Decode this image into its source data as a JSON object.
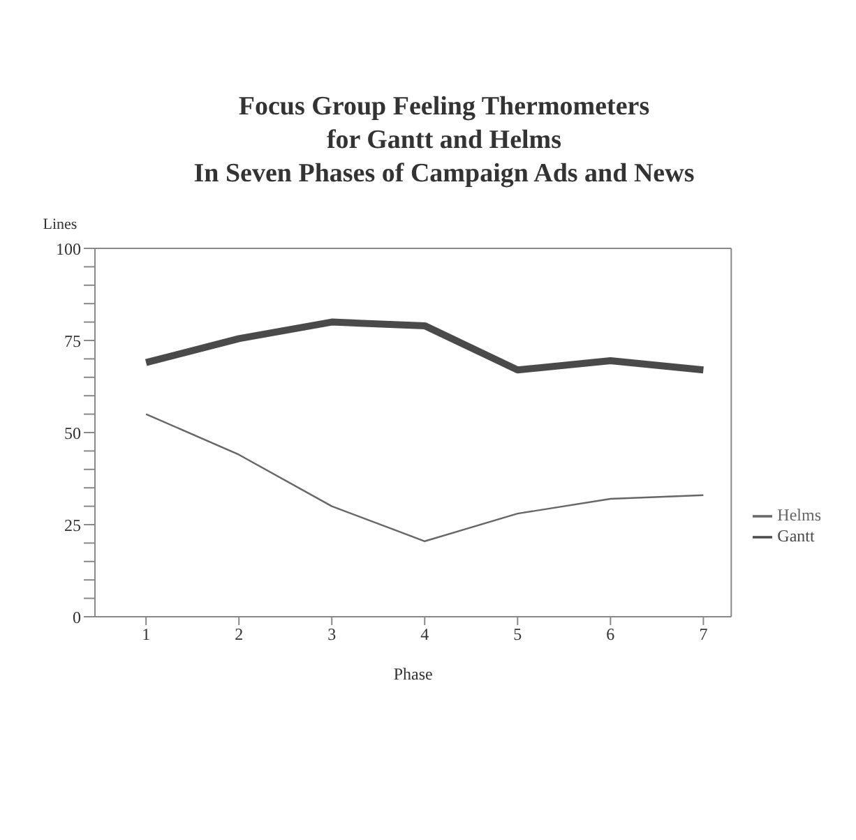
{
  "chart_data": {
    "type": "line",
    "title": "Focus Group Feeling Thermometers\nfor Gantt and Helms\nIn Seven Phases of Campaign Ads and News",
    "xlabel": "Phase",
    "ylabel": "Lines",
    "x": [
      1,
      2,
      3,
      4,
      5,
      6,
      7
    ],
    "series": [
      {
        "name": "Helms",
        "color": "#666666",
        "values": [
          55,
          44,
          30,
          20.5,
          28,
          32,
          33
        ]
      },
      {
        "name": "Gantt",
        "color": "#4a4a4a",
        "values": [
          69,
          75.5,
          80,
          79,
          67,
          69.5,
          67
        ]
      }
    ],
    "xlim": [
      0.45,
      7.3
    ],
    "xticks": [
      1,
      2,
      3,
      4,
      5,
      6,
      7
    ],
    "ylim": [
      0,
      100
    ],
    "yticks": [
      0,
      {
        "value": 5,
        "label": null
      },
      {
        "value": 10,
        "label": null
      },
      {
        "value": 15,
        "label": null
      },
      {
        "value": 20,
        "label": null
      },
      25,
      {
        "value": 30,
        "label": null
      },
      {
        "value": 35,
        "label": null
      },
      {
        "value": 40,
        "label": null
      },
      {
        "value": 45,
        "label": null
      },
      50,
      {
        "value": 55,
        "label": null
      },
      {
        "value": 60,
        "label": null
      },
      {
        "value": 65,
        "label": null
      },
      {
        "value": 70,
        "label": null
      },
      75,
      {
        "value": 80,
        "label": null
      },
      {
        "value": 85,
        "label": null
      },
      {
        "value": 90,
        "label": null
      },
      {
        "value": 95,
        "label": null
      },
      100
    ],
    "grid": false,
    "legend": "right",
    "marker": "none",
    "line_style": "solid"
  }
}
